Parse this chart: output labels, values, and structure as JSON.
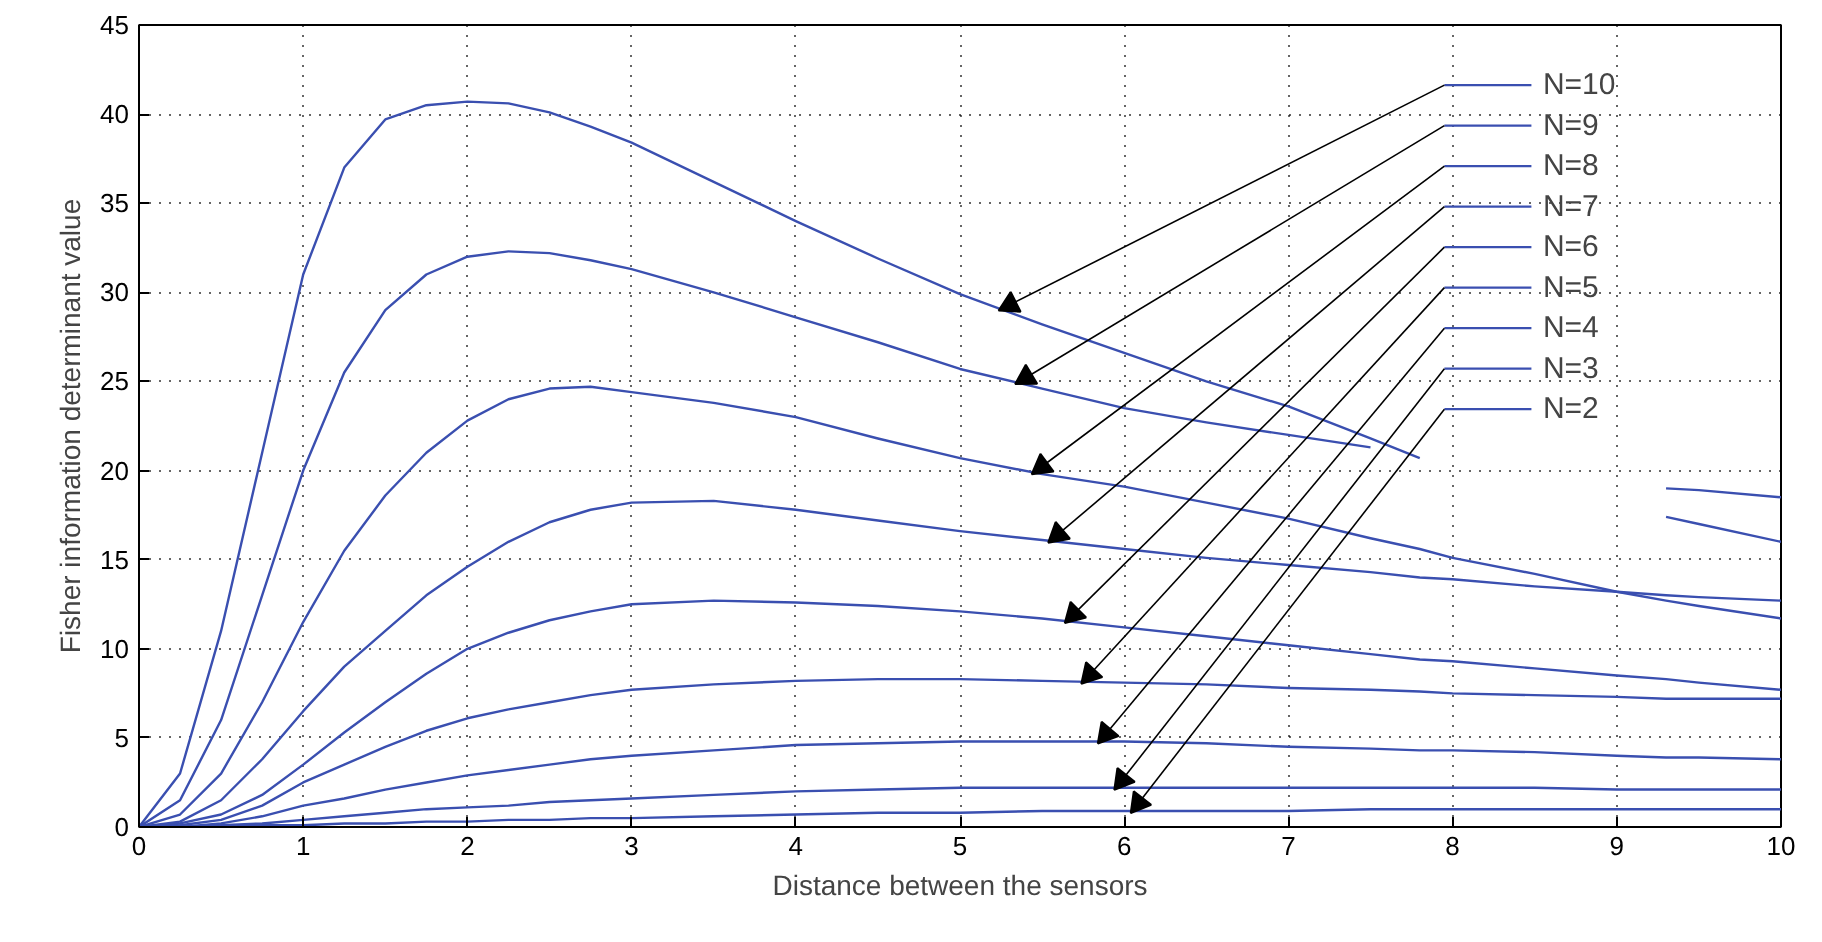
{
  "chart_data": {
    "type": "line",
    "xlabel": "Distance between the sensors",
    "ylabel": "Fisher information determinant value",
    "x": [
      0,
      0.25,
      0.5,
      0.75,
      1,
      1.25,
      1.5,
      1.75,
      2,
      2.25,
      2.5,
      2.75,
      3,
      3.5,
      4,
      4.5,
      5,
      5.5,
      6,
      6.5,
      7,
      7.5,
      7.8,
      8,
      8.5,
      9,
      9.3,
      9.5,
      10
    ],
    "series": [
      {
        "name": "N=10",
        "color": "#3a4fb0",
        "values": [
          0,
          3,
          11,
          21,
          31,
          37,
          39.7,
          40.5,
          40.7,
          40.6,
          40.1,
          39.3,
          38.4,
          36.2,
          34,
          31.9,
          29.9,
          28.2,
          26.6,
          25,
          23.6,
          21.8,
          20.7,
          null,
          null,
          null,
          19,
          18.9,
          18.5
        ]
      },
      {
        "name": "N=9",
        "color": "#3a4fb0",
        "values": [
          0,
          1.5,
          6,
          13,
          20,
          25.5,
          29,
          31,
          32,
          32.3,
          32.2,
          31.8,
          31.3,
          30,
          28.6,
          27.2,
          25.7,
          24.6,
          23.5,
          22.7,
          22,
          21.3,
          null,
          null,
          null,
          null,
          17.4,
          17,
          16
        ]
      },
      {
        "name": "N=8",
        "color": "#3a4fb0",
        "values": [
          0,
          0.7,
          3,
          7,
          11.5,
          15.5,
          18.6,
          21,
          22.8,
          24,
          24.6,
          24.7,
          24.4,
          23.8,
          23,
          21.8,
          20.7,
          19.8,
          19.1,
          18.2,
          17.3,
          16.2,
          15.6,
          15.1,
          14.2,
          13.2,
          12.7,
          12.4,
          11.7
        ]
      },
      {
        "name": "N=7",
        "color": "#3a4fb0",
        "values": [
          0,
          0.3,
          1.5,
          3.8,
          6.5,
          9,
          11,
          13,
          14.6,
          16,
          17.1,
          17.8,
          18.2,
          18.3,
          17.8,
          17.2,
          16.6,
          16.1,
          15.6,
          15.1,
          14.7,
          14.3,
          14.0,
          13.9,
          13.5,
          13.2,
          13.0,
          12.9,
          12.7
        ]
      },
      {
        "name": "N=6",
        "color": "#3a4fb0",
        "values": [
          0,
          0.2,
          0.7,
          1.8,
          3.5,
          5.3,
          7,
          8.6,
          10,
          10.9,
          11.6,
          12.1,
          12.5,
          12.7,
          12.6,
          12.4,
          12.1,
          11.7,
          11.2,
          10.7,
          10.2,
          9.7,
          9.4,
          9.3,
          8.9,
          8.5,
          8.3,
          8.1,
          7.7
        ]
      },
      {
        "name": "N=5",
        "color": "#3a4fb0",
        "values": [
          0,
          0.1,
          0.4,
          1.2,
          2.5,
          3.5,
          4.5,
          5.4,
          6.1,
          6.6,
          7.0,
          7.4,
          7.7,
          8.0,
          8.2,
          8.3,
          8.3,
          8.2,
          8.1,
          8.0,
          7.8,
          7.7,
          7.6,
          7.5,
          7.4,
          7.3,
          7.2,
          7.2,
          7.2
        ]
      },
      {
        "name": "N=4",
        "color": "#3a4fb0",
        "values": [
          0,
          0,
          0.2,
          0.6,
          1.2,
          1.6,
          2.1,
          2.5,
          2.9,
          3.2,
          3.5,
          3.8,
          4.0,
          4.3,
          4.6,
          4.7,
          4.8,
          4.8,
          4.8,
          4.7,
          4.5,
          4.4,
          4.3,
          4.3,
          4.2,
          4.0,
          3.9,
          3.9,
          3.8
        ]
      },
      {
        "name": "N=3",
        "color": "#3a4fb0",
        "values": [
          0,
          0,
          0.1,
          0.2,
          0.4,
          0.6,
          0.8,
          1.0,
          1.1,
          1.2,
          1.4,
          1.5,
          1.6,
          1.8,
          2.0,
          2.1,
          2.2,
          2.2,
          2.2,
          2.2,
          2.2,
          2.2,
          2.2,
          2.2,
          2.2,
          2.1,
          2.1,
          2.1,
          2.1
        ]
      },
      {
        "name": "N=2",
        "color": "#3a4fb0",
        "values": [
          0,
          0,
          0,
          0.1,
          0.1,
          0.2,
          0.2,
          0.3,
          0.3,
          0.4,
          0.4,
          0.5,
          0.5,
          0.6,
          0.7,
          0.8,
          0.8,
          0.9,
          0.9,
          0.9,
          0.9,
          1.0,
          1.0,
          1.0,
          1.0,
          1.0,
          1.0,
          1.0,
          1.0
        ]
      }
    ],
    "xlim": [
      0,
      10
    ],
    "ylim": [
      0,
      45
    ],
    "xticks": [
      0,
      1,
      2,
      3,
      4,
      5,
      6,
      7,
      8,
      9,
      10
    ],
    "yticks": [
      0,
      5,
      10,
      15,
      20,
      25,
      30,
      35,
      40,
      45
    ],
    "grid": true,
    "legend": "top right"
  }
}
